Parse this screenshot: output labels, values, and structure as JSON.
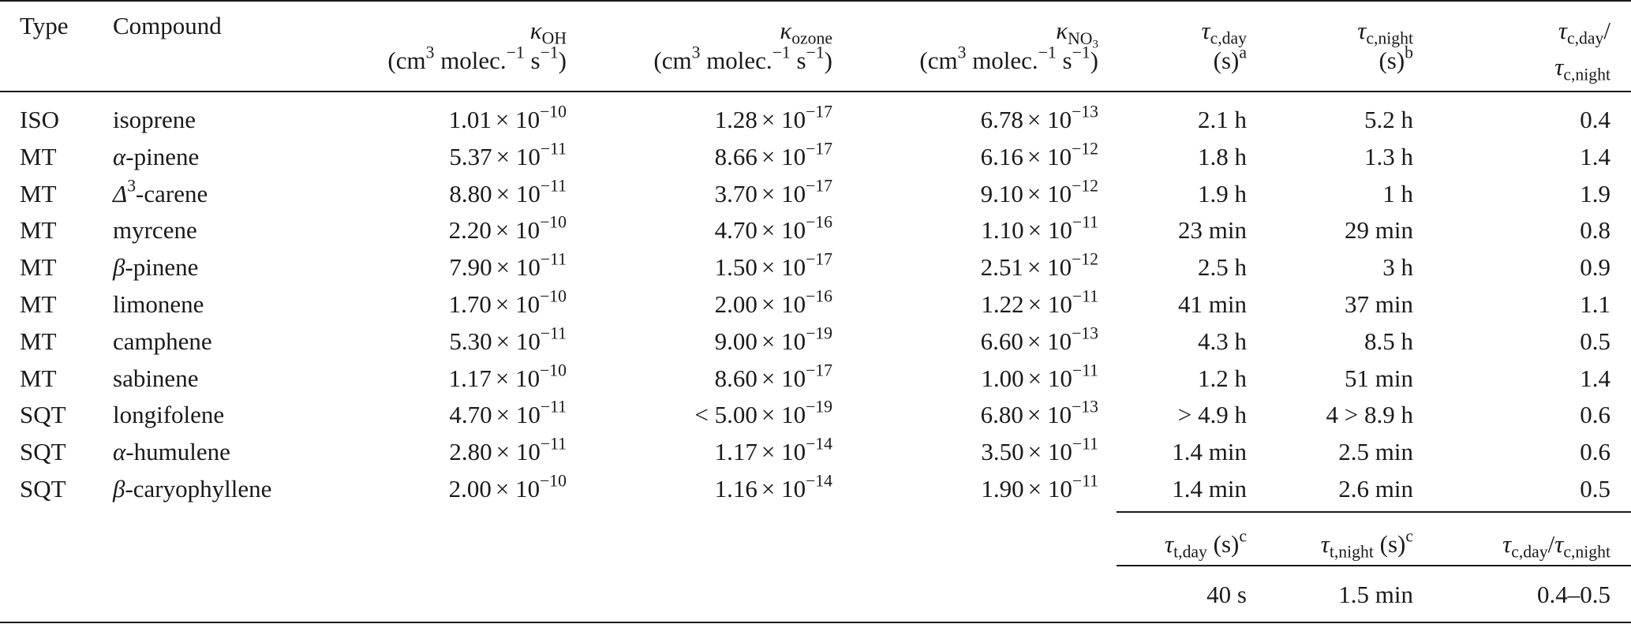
{
  "headers": {
    "type": "Type",
    "compound": "Compound",
    "k_oh_sym": "κ",
    "k_oh_sub": "OH",
    "k_ozone_sym": "κ",
    "k_ozone_sub": "ozone",
    "k_no3_sym": "κ",
    "k_no3_sub": "NO",
    "k_no3_subsub": "3",
    "units_a": "(cm",
    "units_b": "3",
    "units_c": " molec.",
    "units_d": "−1",
    "units_e": " s",
    "units_f": "−1",
    "units_g": ")",
    "tau_sym": "τ",
    "tc_day_sub": "c,day",
    "tc_night_sub": "c,night",
    "s_paren": "(s)",
    "note_a": "a",
    "note_b": "b",
    "ratio_slash": "/",
    "footer_tt_day_sub": "t,day",
    "footer_tt_night_sub": "t,night",
    "footer_s": " (s)",
    "note_c": "c",
    "footer_ratio_num_sub": "c,day",
    "footer_ratio_den_sub": "c,night"
  },
  "rows": [
    {
      "type": "ISO",
      "cmp_pre": "",
      "cmp_sup": "",
      "cmp": "isoprene",
      "koh_lt": "",
      "koh_m": "1.01",
      "koh_e": "−10",
      "koz_lt": "",
      "koz_m": "1.28",
      "koz_e": "−17",
      "kno_lt": "",
      "kno_m": "6.78",
      "kno_e": "−13",
      "tday": "2.1 h",
      "tnight": "5.2 h",
      "ratio": "0.4"
    },
    {
      "type": "MT",
      "cmp_pre": "α",
      "cmp_sup": "",
      "cmp": "-pinene",
      "koh_lt": "",
      "koh_m": "5.37",
      "koh_e": "−11",
      "koz_lt": "",
      "koz_m": "8.66",
      "koz_e": "−17",
      "kno_lt": "",
      "kno_m": "6.16",
      "kno_e": "−12",
      "tday": "1.8 h",
      "tnight": "1.3 h",
      "ratio": "1.4"
    },
    {
      "type": "MT",
      "cmp_pre": "Δ",
      "cmp_sup": "3",
      "cmp": "-carene",
      "koh_lt": "",
      "koh_m": "8.80",
      "koh_e": "−11",
      "koz_lt": "",
      "koz_m": "3.70",
      "koz_e": "−17",
      "kno_lt": "",
      "kno_m": "9.10",
      "kno_e": "−12",
      "tday": "1.9 h",
      "tnight": "1 h",
      "ratio": "1.9"
    },
    {
      "type": "MT",
      "cmp_pre": "",
      "cmp_sup": "",
      "cmp": "myrcene",
      "koh_lt": "",
      "koh_m": "2.20",
      "koh_e": "−10",
      "koz_lt": "",
      "koz_m": "4.70",
      "koz_e": "−16",
      "kno_lt": "",
      "kno_m": "1.10",
      "kno_e": "−11",
      "tday": "23 min",
      "tnight": "29 min",
      "ratio": "0.8"
    },
    {
      "type": "MT",
      "cmp_pre": "β",
      "cmp_sup": "",
      "cmp": "-pinene",
      "koh_lt": "",
      "koh_m": "7.90",
      "koh_e": "−11",
      "koz_lt": "",
      "koz_m": "1.50",
      "koz_e": "−17",
      "kno_lt": "",
      "kno_m": "2.51",
      "kno_e": "−12",
      "tday": "2.5 h",
      "tnight": "3 h",
      "ratio": "0.9"
    },
    {
      "type": "MT",
      "cmp_pre": "",
      "cmp_sup": "",
      "cmp": "limonene",
      "koh_lt": "",
      "koh_m": "1.70",
      "koh_e": "−10",
      "koz_lt": "",
      "koz_m": "2.00",
      "koz_e": "−16",
      "kno_lt": "",
      "kno_m": "1.22",
      "kno_e": "−11",
      "tday": "41 min",
      "tnight": "37 min",
      "ratio": "1.1"
    },
    {
      "type": "MT",
      "cmp_pre": "",
      "cmp_sup": "",
      "cmp": "camphene",
      "koh_lt": "",
      "koh_m": "5.30",
      "koh_e": "−11",
      "koz_lt": "",
      "koz_m": "9.00",
      "koz_e": "−19",
      "kno_lt": "",
      "kno_m": "6.60",
      "kno_e": "−13",
      "tday": "4.3 h",
      "tnight": "8.5 h",
      "ratio": "0.5"
    },
    {
      "type": "MT",
      "cmp_pre": "",
      "cmp_sup": "",
      "cmp": "sabinene",
      "koh_lt": "",
      "koh_m": "1.17",
      "koh_e": "−10",
      "koz_lt": "",
      "koz_m": "8.60",
      "koz_e": "−17",
      "kno_lt": "",
      "kno_m": "1.00",
      "kno_e": "−11",
      "tday": "1.2 h",
      "tnight": "51 min",
      "ratio": "1.4"
    },
    {
      "type": "SQT",
      "cmp_pre": "",
      "cmp_sup": "",
      "cmp": "longifolene",
      "koh_lt": "",
      "koh_m": "4.70",
      "koh_e": "−11",
      "koz_lt": "< ",
      "koz_m": "5.00",
      "koz_e": "−19",
      "kno_lt": "",
      "kno_m": "6.80",
      "kno_e": "−13",
      "tday": "> 4.9 h",
      "tnight": "4 > 8.9 h",
      "ratio": "0.6"
    },
    {
      "type": "SQT",
      "cmp_pre": "α",
      "cmp_sup": "",
      "cmp": "-humulene",
      "koh_lt": "",
      "koh_m": "2.80",
      "koh_e": "−11",
      "koz_lt": "",
      "koz_m": "1.17",
      "koz_e": "−14",
      "kno_lt": "",
      "kno_m": "3.50",
      "kno_e": "−11",
      "tday": "1.4 min",
      "tnight": "2.5 min",
      "ratio": "0.6"
    },
    {
      "type": "SQT",
      "cmp_pre": "β",
      "cmp_sup": "",
      "cmp": "-caryophyllene",
      "koh_lt": "",
      "koh_m": "2.00",
      "koh_e": "−10",
      "koz_lt": "",
      "koz_m": "1.16",
      "koz_e": "−14",
      "kno_lt": "",
      "kno_m": "1.90",
      "kno_e": "−11",
      "tday": "1.4 min",
      "tnight": "2.6 min",
      "ratio": "0.5"
    }
  ],
  "times_ten": "× 10",
  "footer_values": {
    "tt_day": "40 s",
    "tt_night": "1.5 min",
    "ratio_range": "0.4–0.5"
  }
}
